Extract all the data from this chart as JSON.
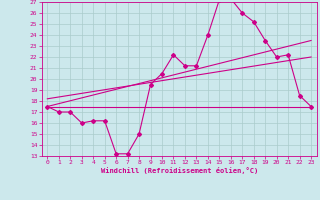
{
  "title": "",
  "xlabel": "Windchill (Refroidissement éolien,°C)",
  "bg_color": "#cce8ec",
  "grid_color": "#aacccc",
  "line_color": "#cc0088",
  "xlim": [
    -0.5,
    23.5
  ],
  "ylim": [
    13,
    27
  ],
  "xticks": [
    0,
    1,
    2,
    3,
    4,
    5,
    6,
    7,
    8,
    9,
    10,
    11,
    12,
    13,
    14,
    15,
    16,
    17,
    18,
    19,
    20,
    21,
    22,
    23
  ],
  "yticks": [
    13,
    14,
    15,
    16,
    17,
    18,
    19,
    20,
    21,
    22,
    23,
    24,
    25,
    26,
    27
  ],
  "series1_x": [
    0,
    1,
    2,
    3,
    4,
    5,
    6,
    7,
    8,
    9,
    10,
    11,
    12,
    13,
    14,
    15,
    16,
    17,
    18,
    19,
    20,
    21,
    22,
    23
  ],
  "series1_y": [
    17.5,
    17.0,
    17.0,
    16.0,
    16.2,
    16.2,
    13.2,
    13.2,
    15.0,
    19.5,
    20.5,
    22.2,
    21.2,
    21.2,
    24.0,
    27.2,
    27.3,
    26.0,
    25.2,
    23.5,
    22.0,
    22.2,
    18.5,
    17.5
  ],
  "series2_x": [
    0,
    23
  ],
  "series2_y": [
    17.5,
    17.5
  ],
  "series3_x": [
    0,
    23
  ],
  "series3_y": [
    17.5,
    23.5
  ],
  "series4_x": [
    0,
    23
  ],
  "series4_y": [
    18.2,
    22.0
  ]
}
